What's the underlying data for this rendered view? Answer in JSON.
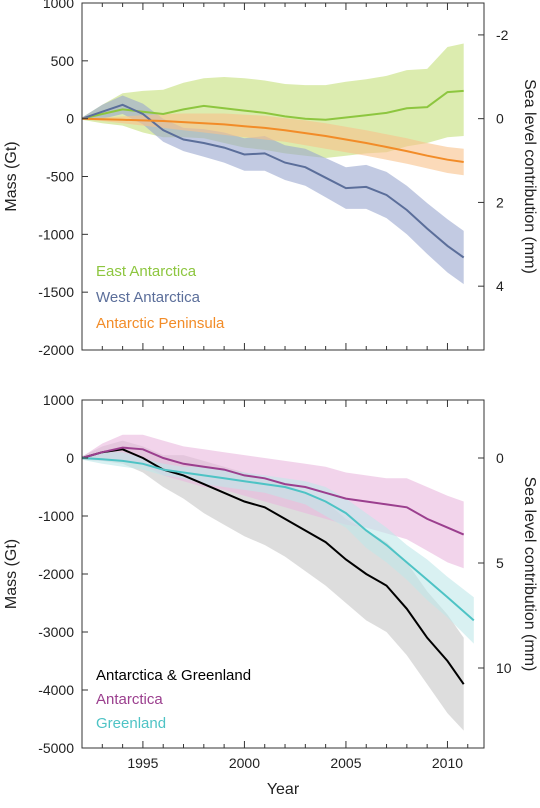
{
  "chart_data": [
    {
      "type": "line",
      "xlabel": "",
      "ylabel": "Mass (Gt)",
      "y2label": "Sea level contribution (mm)",
      "xlim": [
        1992,
        2011.8
      ],
      "ylim": [
        -2000,
        1000
      ],
      "y2ticks": [
        -2,
        0,
        2,
        4
      ],
      "y2_mm_per_gt": -0.002762,
      "yticks": [
        -2000,
        -1500,
        -1000,
        -500,
        0,
        500,
        1000
      ],
      "grid": false,
      "legend_position": "bottom-left",
      "series": [
        {
          "name": "East Antarctica",
          "color": "#8dc63f",
          "band_color": "#c5e07a",
          "x": [
            1992,
            1993,
            1994,
            1995,
            1996,
            1997,
            1998,
            1999,
            2000,
            2001,
            2002,
            2003,
            2004,
            2005,
            2006,
            2007,
            2008,
            2009,
            2010,
            2010.8
          ],
          "values": [
            0,
            40,
            80,
            60,
            40,
            80,
            110,
            90,
            70,
            50,
            20,
            0,
            -10,
            10,
            30,
            50,
            90,
            100,
            230,
            240
          ],
          "lower": [
            -10,
            -40,
            -60,
            -120,
            -160,
            -160,
            -170,
            -210,
            -250,
            -270,
            -300,
            -320,
            -340,
            -320,
            -300,
            -290,
            -240,
            -210,
            -160,
            -150
          ],
          "upper": [
            10,
            120,
            220,
            240,
            250,
            310,
            350,
            360,
            350,
            330,
            300,
            290,
            290,
            320,
            340,
            370,
            420,
            430,
            620,
            650
          ]
        },
        {
          "name": "West Antarctica",
          "color": "#5b6e9a",
          "band_color": "#9aa6cf",
          "x": [
            1992,
            1993,
            1994,
            1995,
            1996,
            1997,
            1998,
            1999,
            2000,
            2001,
            2002,
            2003,
            2004,
            2005,
            2006,
            2007,
            2008,
            2009,
            2010,
            2010.8
          ],
          "values": [
            0,
            60,
            120,
            40,
            -100,
            -180,
            -210,
            -250,
            -310,
            -300,
            -380,
            -420,
            -510,
            -600,
            -590,
            -660,
            -790,
            -950,
            -1100,
            -1200
          ],
          "lower": [
            -10,
            0,
            40,
            -50,
            -200,
            -280,
            -330,
            -380,
            -450,
            -450,
            -530,
            -580,
            -680,
            -780,
            -780,
            -860,
            -1000,
            -1170,
            -1330,
            -1430
          ],
          "upper": [
            10,
            120,
            200,
            130,
            0,
            -80,
            -90,
            -120,
            -170,
            -150,
            -230,
            -260,
            -340,
            -420,
            -400,
            -460,
            -580,
            -730,
            -870,
            -970
          ]
        },
        {
          "name": "Antarctic Peninsula",
          "color": "#f28c28",
          "band_color": "#f8c28a",
          "x": [
            1992,
            1993,
            1994,
            1995,
            1996,
            1997,
            1998,
            1999,
            2000,
            2001,
            2002,
            2003,
            2004,
            2005,
            2006,
            2007,
            2008,
            2009,
            2010,
            2010.8
          ],
          "values": [
            0,
            -5,
            -10,
            -15,
            -20,
            -30,
            -40,
            -50,
            -65,
            -80,
            -100,
            -125,
            -150,
            -180,
            -210,
            -245,
            -280,
            -320,
            -355,
            -375
          ],
          "lower": [
            -5,
            -20,
            -40,
            -60,
            -80,
            -100,
            -120,
            -140,
            -160,
            -180,
            -200,
            -230,
            -260,
            -290,
            -320,
            -355,
            -390,
            -430,
            -470,
            -490
          ],
          "upper": [
            5,
            10,
            20,
            30,
            40,
            45,
            45,
            45,
            35,
            25,
            5,
            -15,
            -40,
            -70,
            -100,
            -135,
            -170,
            -210,
            -245,
            -260
          ]
        }
      ]
    },
    {
      "type": "line",
      "xlabel": "Year",
      "ylabel": "Mass (Gt)",
      "y2label": "Sea level contribution (mm)",
      "xlim": [
        1992,
        2011.8
      ],
      "ylim": [
        -5000,
        1000
      ],
      "y2ticks": [
        0,
        5,
        10
      ],
      "y2_mm_per_gt": -0.002762,
      "yticks": [
        -5000,
        -4000,
        -3000,
        -2000,
        -1000,
        0,
        1000
      ],
      "xticks": [
        1995,
        2000,
        2005,
        2010
      ],
      "grid": false,
      "legend_position": "bottom-left",
      "series": [
        {
          "name": "Antarctica & Greenland",
          "color": "#000000",
          "band_color": "#c7c7c7",
          "x": [
            1992,
            1993,
            1994,
            1995,
            1996,
            1997,
            1998,
            1999,
            2000,
            2001,
            2002,
            2003,
            2004,
            2005,
            2006,
            2007,
            2008,
            2009,
            2010,
            2010.8
          ],
          "values": [
            0,
            100,
            150,
            0,
            -200,
            -300,
            -450,
            -600,
            -750,
            -850,
            -1050,
            -1250,
            -1450,
            -1750,
            -2000,
            -2200,
            -2600,
            -3100,
            -3500,
            -3900
          ],
          "lower": [
            -30,
            -50,
            -100,
            -250,
            -500,
            -700,
            -950,
            -1150,
            -1350,
            -1500,
            -1700,
            -1950,
            -2200,
            -2500,
            -2800,
            -3000,
            -3400,
            -3900,
            -4400,
            -4700
          ],
          "upper": [
            30,
            200,
            300,
            200,
            50,
            50,
            -50,
            -150,
            -250,
            -350,
            -450,
            -600,
            -750,
            -1050,
            -1250,
            -1450,
            -1800,
            -2300,
            -2700,
            -3100
          ]
        },
        {
          "name": "Antarctica",
          "color": "#9b3f8e",
          "band_color": "#eab7dd",
          "x": [
            1992,
            1993,
            1994,
            1995,
            1996,
            1997,
            1998,
            1999,
            2000,
            2001,
            2002,
            2003,
            2004,
            2005,
            2006,
            2007,
            2008,
            2009,
            2010,
            2010.8
          ],
          "values": [
            0,
            100,
            180,
            150,
            0,
            -100,
            -150,
            -200,
            -300,
            -350,
            -450,
            -500,
            -600,
            -700,
            -750,
            -800,
            -850,
            -1050,
            -1200,
            -1320
          ],
          "lower": [
            -20,
            -50,
            -50,
            -120,
            -300,
            -400,
            -500,
            -550,
            -650,
            -750,
            -850,
            -950,
            -1050,
            -1150,
            -1200,
            -1300,
            -1400,
            -1600,
            -1800,
            -1900
          ],
          "upper": [
            20,
            250,
            400,
            400,
            300,
            200,
            150,
            100,
            50,
            0,
            -50,
            -100,
            -150,
            -250,
            -300,
            -350,
            -350,
            -500,
            -650,
            -750
          ]
        },
        {
          "name": "Greenland",
          "color": "#4ec3c5",
          "band_color": "#bfe8ea",
          "x": [
            1992,
            1993,
            1994,
            1995,
            1996,
            1997,
            1998,
            1999,
            2000,
            2001,
            2002,
            2003,
            2004,
            2005,
            2006,
            2007,
            2008,
            2009,
            2010,
            2011.3
          ],
          "values": [
            0,
            -20,
            -50,
            -100,
            -200,
            -250,
            -300,
            -350,
            -400,
            -450,
            -500,
            -600,
            -750,
            -950,
            -1250,
            -1500,
            -1800,
            -2100,
            -2400,
            -2800
          ],
          "lower": [
            -30,
            -100,
            -150,
            -200,
            -300,
            -350,
            -450,
            -500,
            -550,
            -600,
            -700,
            -800,
            -1000,
            -1200,
            -1550,
            -1800,
            -2100,
            -2450,
            -2750,
            -3200
          ],
          "upper": [
            30,
            100,
            100,
            0,
            -100,
            -150,
            -150,
            -200,
            -250,
            -300,
            -350,
            -400,
            -500,
            -700,
            -950,
            -1200,
            -1500,
            -1750,
            -2050,
            -2400
          ]
        }
      ]
    }
  ]
}
